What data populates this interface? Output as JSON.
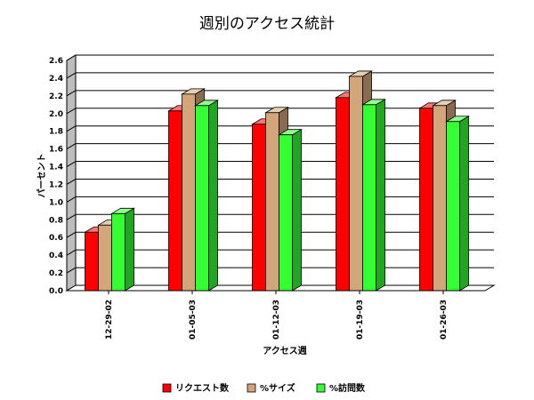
{
  "chart_data": {
    "type": "bar",
    "title": "週別のアクセス統計",
    "xlabel": "アクセス週",
    "ylabel": "パーセント",
    "categories": [
      "12-29-02",
      "01-05-03",
      "01-12-03",
      "01-19-03",
      "01-26-03"
    ],
    "ylim": [
      0,
      2.6
    ],
    "yticks": [
      "0.0",
      "0.2",
      "0.4",
      "0.6",
      "0.8",
      "1.0",
      "1.2",
      "1.4",
      "1.6",
      "1.8",
      "2.0",
      "2.2",
      "2.4",
      "2.6"
    ],
    "grid": true,
    "legend_position": "bottom",
    "series": [
      {
        "name": "リクエスト数",
        "color": "#ff0000",
        "values": [
          0.66,
          2.03,
          1.88,
          2.18,
          2.06
        ]
      },
      {
        "name": "%サイズ",
        "color": "#d2a679",
        "values": [
          0.74,
          2.22,
          2.01,
          2.42,
          2.09
        ]
      },
      {
        "name": "%訪問数",
        "color": "#33ff33",
        "values": [
          0.87,
          2.09,
          1.76,
          2.1,
          1.91
        ]
      }
    ]
  }
}
